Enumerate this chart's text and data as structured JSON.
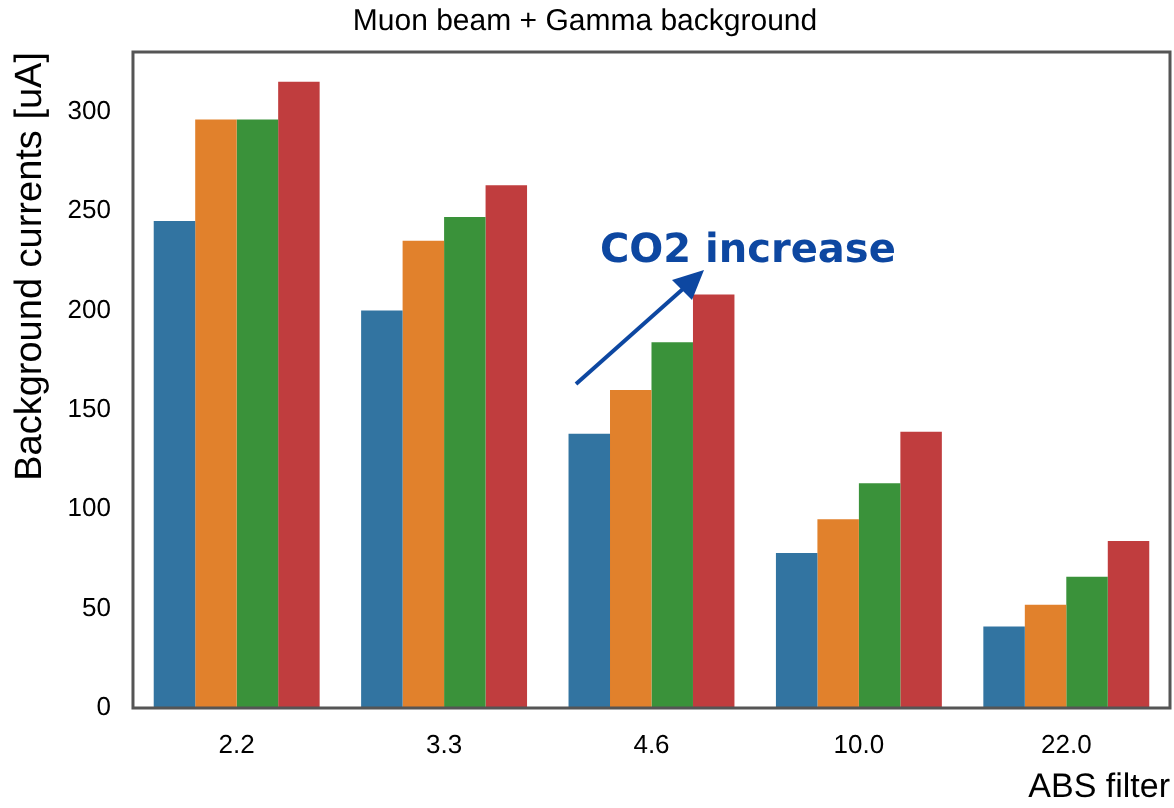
{
  "chart_data": {
    "type": "bar",
    "title": "Muon beam + Gamma background",
    "xlabel": "ABS filter",
    "ylabel": "Background currents [uA]",
    "categories": [
      "2.2",
      "3.3",
      "4.6",
      "10.0",
      "22.0"
    ],
    "series": [
      {
        "color": "#3274a1",
        "values": [
          245,
          200,
          138,
          78,
          41
        ]
      },
      {
        "color": "#e1812c",
        "values": [
          296,
          235,
          160,
          95,
          52
        ]
      },
      {
        "color": "#3a923a",
        "values": [
          296,
          247,
          184,
          113,
          66
        ]
      },
      {
        "color": "#c03d3e",
        "values": [
          315,
          263,
          208,
          139,
          84
        ]
      }
    ],
    "ylim": [
      0,
      330
    ],
    "yticks": [
      0,
      50,
      100,
      150,
      200,
      250,
      300
    ],
    "grid": false,
    "legend": false,
    "annotations": [
      "CO2 increase"
    ]
  }
}
